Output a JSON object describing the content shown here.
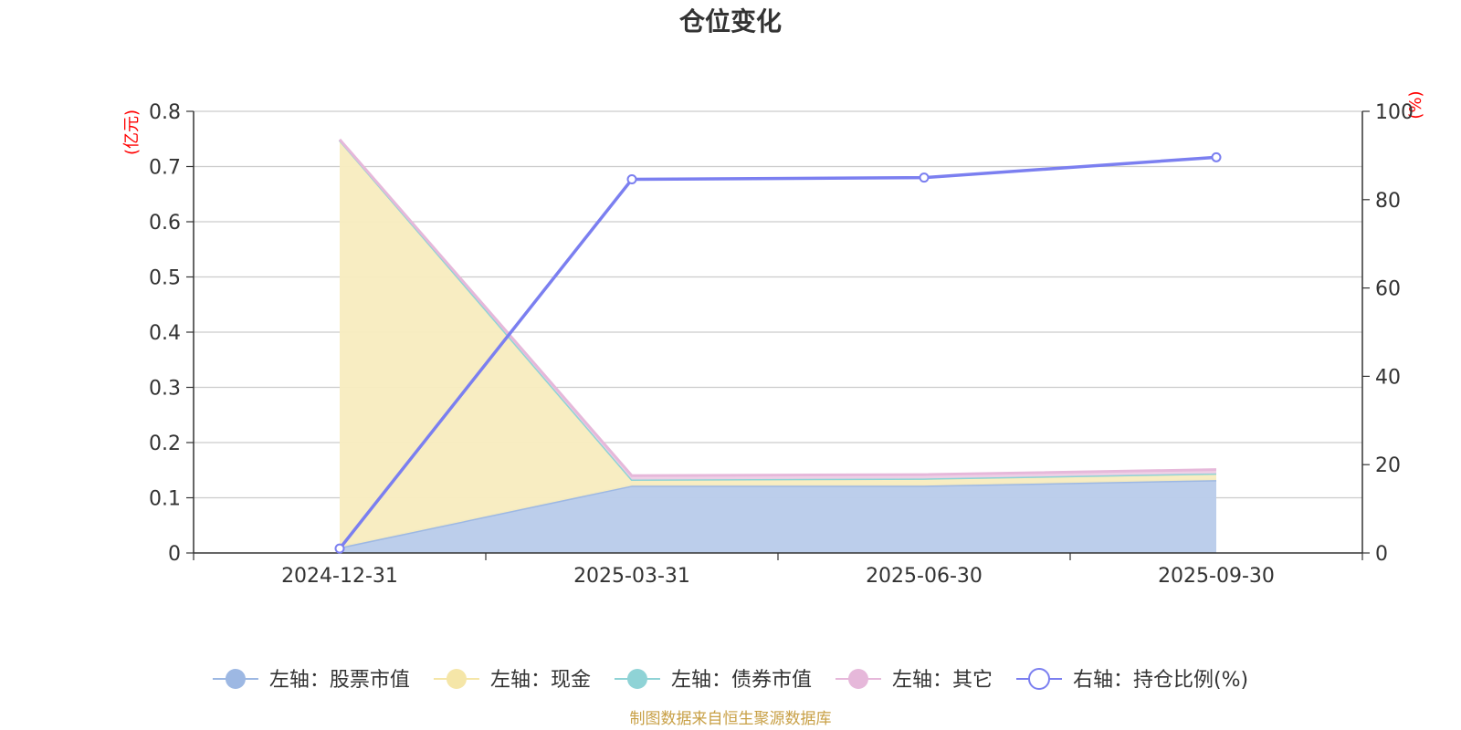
{
  "chart_data": {
    "type": "area",
    "title": "仓位变化",
    "categories": [
      "2024-12-31",
      "2025-03-31",
      "2025-06-30",
      "2025-09-30"
    ],
    "y_left": {
      "unit": "(亿元)",
      "ylim": [
        0,
        0.8
      ],
      "ticks": [
        "0",
        "0.1",
        "0.2",
        "0.3",
        "0.4",
        "0.5",
        "0.6",
        "0.7",
        "0.8"
      ]
    },
    "y_right": {
      "unit": "(%)",
      "ylim": [
        0,
        100
      ],
      "ticks": [
        "0",
        "20",
        "40",
        "60",
        "80",
        "100"
      ]
    },
    "series": [
      {
        "name": "左轴：股票市值",
        "axis": "left",
        "stacked": true,
        "values": [
          0.01,
          0.122,
          0.122,
          0.132
        ],
        "color": "#9db8e3",
        "fill": "#b8cbea"
      },
      {
        "name": "左轴：现金",
        "axis": "left",
        "stacked": true,
        "values": [
          0.738,
          0.011,
          0.013,
          0.012
        ],
        "color": "#f5e6a8",
        "fill": "#f8ecbf"
      },
      {
        "name": "左轴：债券市值",
        "axis": "left",
        "stacked": true,
        "values": [
          0,
          0,
          0,
          0
        ],
        "color": "#8fd3d6",
        "fill": "#8fd3d6"
      },
      {
        "name": "左轴：其它",
        "axis": "left",
        "stacked": true,
        "values": [
          0.001,
          0.007,
          0.007,
          0.007
        ],
        "color": "#e6b8da",
        "fill": "#efcfe6"
      },
      {
        "name": "右轴：持仓比例(%)",
        "axis": "right",
        "stacked": false,
        "values": [
          1,
          84.6,
          85.0,
          89.6
        ],
        "color": "#7b7ff0"
      }
    ],
    "grid": true,
    "legend_position": "bottom"
  },
  "source_note": "制图数据来自恒生聚源数据库"
}
